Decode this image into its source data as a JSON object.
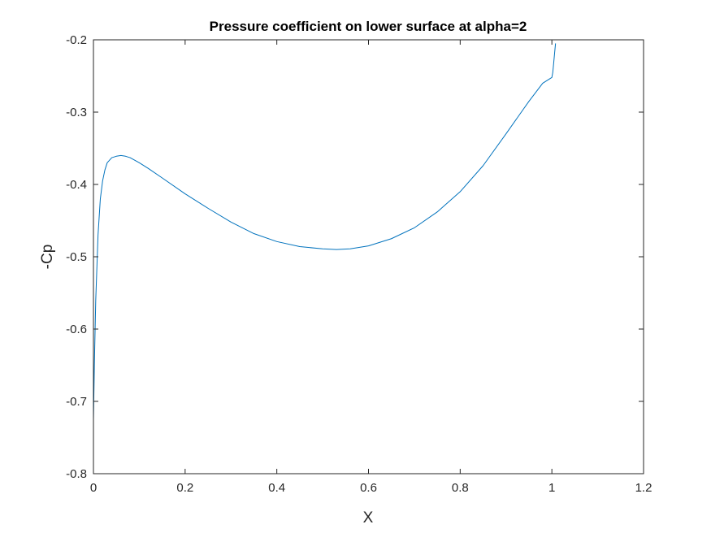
{
  "chart_data": {
    "type": "line",
    "title": "Pressure coefficient on lower surface at alpha=2",
    "xlabel": "X",
    "ylabel": "-Cp",
    "xlim": [
      0,
      1.2
    ],
    "ylim": [
      -0.8,
      -0.2
    ],
    "xticks": [
      0,
      0.2,
      0.4,
      0.6,
      0.8,
      1,
      1.2
    ],
    "xtick_labels": [
      "0",
      "0.2",
      "0.4",
      "0.6",
      "0.8",
      "1",
      "1.2"
    ],
    "yticks": [
      -0.8,
      -0.7,
      -0.6,
      -0.5,
      -0.4,
      -0.3,
      -0.2
    ],
    "ytick_labels": [
      "-0.8",
      "-0.7",
      "-0.6",
      "-0.5",
      "-0.4",
      "-0.3",
      "-0.2"
    ],
    "grid": false,
    "legend": "none",
    "series": [
      {
        "color": "#0072bd",
        "x": [
          0.0,
          0.002,
          0.005,
          0.01,
          0.015,
          0.02,
          0.025,
          0.03,
          0.04,
          0.05,
          0.06,
          0.07,
          0.08,
          0.1,
          0.12,
          0.15,
          0.2,
          0.25,
          0.3,
          0.35,
          0.4,
          0.45,
          0.5,
          0.53,
          0.56,
          0.6,
          0.65,
          0.7,
          0.75,
          0.8,
          0.85,
          0.9,
          0.95,
          0.98,
          1.0,
          1.002,
          1.004,
          1.006,
          1.008
        ],
        "y": [
          -0.725,
          -0.65,
          -0.56,
          -0.47,
          -0.42,
          -0.395,
          -0.38,
          -0.37,
          -0.363,
          -0.361,
          -0.36,
          -0.361,
          -0.363,
          -0.37,
          -0.378,
          -0.391,
          -0.413,
          -0.433,
          -0.452,
          -0.468,
          -0.479,
          -0.486,
          -0.489,
          -0.49,
          -0.489,
          -0.485,
          -0.475,
          -0.46,
          -0.438,
          -0.41,
          -0.374,
          -0.33,
          -0.285,
          -0.26,
          -0.252,
          -0.245,
          -0.232,
          -0.218,
          -0.205
        ]
      }
    ]
  }
}
